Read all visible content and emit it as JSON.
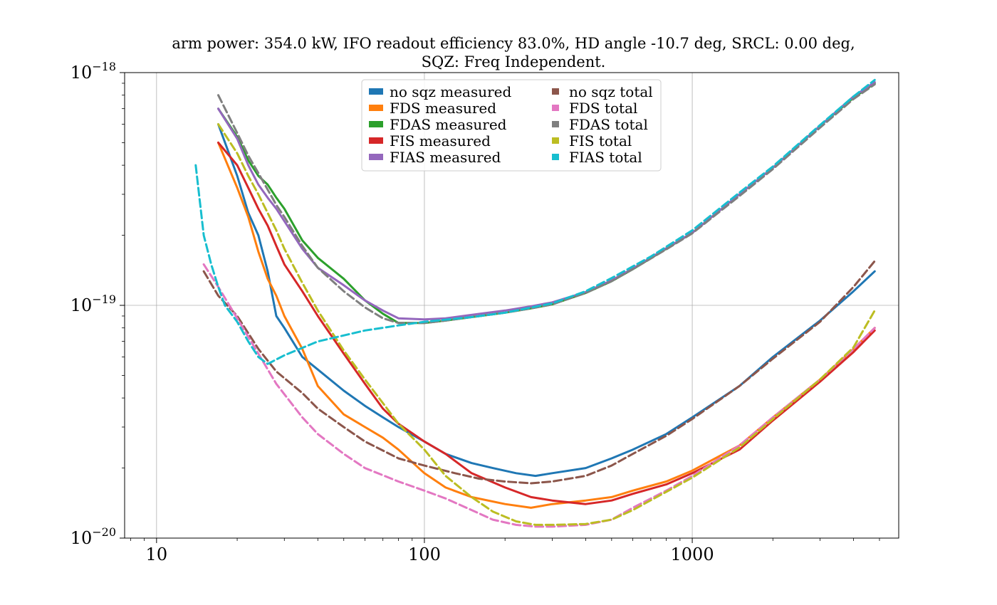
{
  "chart_data": {
    "type": "line",
    "title_line1": "arm power: 354.0 kW, IFO readout efficiency 83.0%, HD angle -10.7 deg, SRCL: 0.00 deg,",
    "title_line2": "SQZ: Freq Independent.",
    "xlabel": "",
    "ylabel": "",
    "x_scale": "log",
    "y_scale": "log",
    "xlim": [
      7.6,
      5900
    ],
    "ylim": [
      1e-20,
      1e-18
    ],
    "x_ticks": [
      10,
      100,
      1000
    ],
    "x_tick_labels": [
      "10",
      "100",
      "1000"
    ],
    "y_ticks": [
      1e-20,
      1e-19,
      1e-18
    ],
    "y_tick_labels": [
      {
        "base": "10",
        "exp": "−20"
      },
      {
        "base": "10",
        "exp": "−19"
      },
      {
        "base": "10",
        "exp": "−18"
      }
    ],
    "grid": true,
    "legend_position": "upper-center",
    "legend_columns": 2,
    "series": [
      {
        "name": "no sqz measured",
        "color": "#1f77b4",
        "style": "solid",
        "points": [
          [
            17,
            6e-19
          ],
          [
            20,
            3.6e-19
          ],
          [
            22,
            2.5e-19
          ],
          [
            24,
            2e-19
          ],
          [
            26,
            1.4e-19
          ],
          [
            28,
            9e-20
          ],
          [
            30,
            8e-20
          ],
          [
            35,
            6e-20
          ],
          [
            40,
            5.3e-20
          ],
          [
            50,
            4.3e-20
          ],
          [
            60,
            3.7e-20
          ],
          [
            70,
            3.3e-20
          ],
          [
            80,
            3e-20
          ],
          [
            100,
            2.6e-20
          ],
          [
            120,
            2.3e-20
          ],
          [
            150,
            2.1e-20
          ],
          [
            180,
            2e-20
          ],
          [
            220,
            1.9e-20
          ],
          [
            260,
            1.85e-20
          ],
          [
            300,
            1.9e-20
          ],
          [
            400,
            2e-20
          ],
          [
            500,
            2.2e-20
          ],
          [
            600,
            2.4e-20
          ],
          [
            800,
            2.8e-20
          ],
          [
            1000,
            3.3e-20
          ],
          [
            1500,
            4.5e-20
          ],
          [
            2000,
            6e-20
          ],
          [
            3000,
            8.6e-20
          ],
          [
            4000,
            1.15e-19
          ],
          [
            4800,
            1.4e-19
          ]
        ]
      },
      {
        "name": "FDS measured",
        "color": "#ff7f0e",
        "style": "solid",
        "points": [
          [
            17,
            5e-19
          ],
          [
            20,
            3.2e-19
          ],
          [
            22,
            2.4e-19
          ],
          [
            24,
            1.7e-19
          ],
          [
            26,
            1.3e-19
          ],
          [
            28,
            1.1e-19
          ],
          [
            30,
            9e-20
          ],
          [
            35,
            6.5e-20
          ],
          [
            40,
            4.5e-20
          ],
          [
            50,
            3.4e-20
          ],
          [
            60,
            3e-20
          ],
          [
            70,
            2.7e-20
          ],
          [
            80,
            2.4e-20
          ],
          [
            100,
            1.9e-20
          ],
          [
            120,
            1.65e-20
          ],
          [
            150,
            1.5e-20
          ],
          [
            200,
            1.4e-20
          ],
          [
            250,
            1.35e-20
          ],
          [
            300,
            1.4e-20
          ],
          [
            400,
            1.45e-20
          ],
          [
            500,
            1.5e-20
          ],
          [
            600,
            1.6e-20
          ],
          [
            800,
            1.75e-20
          ],
          [
            1000,
            1.95e-20
          ],
          [
            1500,
            2.5e-20
          ],
          [
            2000,
            3.3e-20
          ],
          [
            3000,
            4.8e-20
          ],
          [
            4000,
            6.5e-20
          ],
          [
            4800,
            8e-20
          ]
        ]
      },
      {
        "name": "FDAS measured",
        "color": "#2ca02c",
        "style": "solid",
        "points": [
          [
            17,
            7e-19
          ],
          [
            20,
            5.3e-19
          ],
          [
            22,
            4.2e-19
          ],
          [
            24,
            3.6e-19
          ],
          [
            26,
            3.3e-19
          ],
          [
            28,
            2.9e-19
          ],
          [
            30,
            2.6e-19
          ],
          [
            35,
            1.9e-19
          ],
          [
            40,
            1.6e-19
          ],
          [
            50,
            1.3e-19
          ],
          [
            60,
            1.05e-19
          ],
          [
            70,
            9.2e-20
          ],
          [
            80,
            8.4e-20
          ],
          [
            100,
            8.4e-20
          ],
          [
            120,
            8.6e-20
          ],
          [
            150,
            8.9e-20
          ],
          [
            200,
            9.3e-20
          ],
          [
            250,
            9.7e-20
          ],
          [
            300,
            1.01e-19
          ],
          [
            400,
            1.13e-19
          ],
          [
            500,
            1.27e-19
          ],
          [
            600,
            1.43e-19
          ],
          [
            800,
            1.75e-19
          ],
          [
            1000,
            2.05e-19
          ],
          [
            1500,
            3e-19
          ],
          [
            2000,
            3.9e-19
          ],
          [
            3000,
            5.9e-19
          ],
          [
            4000,
            7.8e-19
          ],
          [
            4800,
            9e-19
          ]
        ]
      },
      {
        "name": "FIS measured",
        "color": "#d62728",
        "style": "solid",
        "points": [
          [
            17,
            5e-19
          ],
          [
            20,
            4e-19
          ],
          [
            22,
            3.2e-19
          ],
          [
            24,
            2.6e-19
          ],
          [
            26,
            2.2e-19
          ],
          [
            28,
            1.8e-19
          ],
          [
            30,
            1.5e-19
          ],
          [
            35,
            1.15e-19
          ],
          [
            40,
            9e-20
          ],
          [
            50,
            6.2e-20
          ],
          [
            60,
            4.6e-20
          ],
          [
            70,
            3.6e-20
          ],
          [
            80,
            3.1e-20
          ],
          [
            100,
            2.6e-20
          ],
          [
            120,
            2.3e-20
          ],
          [
            150,
            1.9e-20
          ],
          [
            200,
            1.65e-20
          ],
          [
            250,
            1.5e-20
          ],
          [
            300,
            1.45e-20
          ],
          [
            400,
            1.4e-20
          ],
          [
            500,
            1.45e-20
          ],
          [
            600,
            1.55e-20
          ],
          [
            800,
            1.7e-20
          ],
          [
            1000,
            1.9e-20
          ],
          [
            1500,
            2.4e-20
          ],
          [
            2000,
            3.2e-20
          ],
          [
            3000,
            4.7e-20
          ],
          [
            4000,
            6.3e-20
          ],
          [
            4800,
            7.8e-20
          ]
        ]
      },
      {
        "name": "FIAS measured",
        "color": "#9467bd",
        "style": "solid",
        "points": [
          [
            17,
            7e-19
          ],
          [
            20,
            5.2e-19
          ],
          [
            22,
            4e-19
          ],
          [
            24,
            3.3e-19
          ],
          [
            26,
            2.9e-19
          ],
          [
            28,
            2.6e-19
          ],
          [
            30,
            2.3e-19
          ],
          [
            35,
            1.75e-19
          ],
          [
            40,
            1.45e-19
          ],
          [
            50,
            1.22e-19
          ],
          [
            60,
            1.05e-19
          ],
          [
            70,
            9.5e-20
          ],
          [
            80,
            8.8e-20
          ],
          [
            100,
            8.7e-20
          ],
          [
            120,
            8.8e-20
          ],
          [
            150,
            9.1e-20
          ],
          [
            200,
            9.5e-20
          ],
          [
            250,
            9.9e-20
          ],
          [
            300,
            1.03e-19
          ],
          [
            400,
            1.14e-19
          ],
          [
            500,
            1.28e-19
          ],
          [
            600,
            1.44e-19
          ],
          [
            800,
            1.76e-19
          ],
          [
            1000,
            2.05e-19
          ],
          [
            1500,
            3e-19
          ],
          [
            2000,
            3.9e-19
          ],
          [
            3000,
            5.9e-19
          ],
          [
            4000,
            7.9e-19
          ],
          [
            4800,
            9.1e-19
          ]
        ]
      },
      {
        "name": "no sqz total",
        "color": "#8c564b",
        "style": "dashed",
        "points": [
          [
            15,
            1.4e-19
          ],
          [
            17,
            1.1e-19
          ],
          [
            20,
            9e-20
          ],
          [
            24,
            6.5e-20
          ],
          [
            28,
            5.2e-20
          ],
          [
            35,
            4.2e-20
          ],
          [
            40,
            3.6e-20
          ],
          [
            50,
            3e-20
          ],
          [
            60,
            2.6e-20
          ],
          [
            80,
            2.2e-20
          ],
          [
            100,
            2.05e-20
          ],
          [
            130,
            1.9e-20
          ],
          [
            160,
            1.8e-20
          ],
          [
            200,
            1.75e-20
          ],
          [
            250,
            1.72e-20
          ],
          [
            300,
            1.75e-20
          ],
          [
            400,
            1.85e-20
          ],
          [
            500,
            2.05e-20
          ],
          [
            600,
            2.3e-20
          ],
          [
            800,
            2.75e-20
          ],
          [
            1000,
            3.25e-20
          ],
          [
            1500,
            4.5e-20
          ],
          [
            2000,
            5.9e-20
          ],
          [
            3000,
            8.5e-20
          ],
          [
            4000,
            1.2e-19
          ],
          [
            4800,
            1.55e-19
          ]
        ]
      },
      {
        "name": "FDS total",
        "color": "#e377c2",
        "style": "dashed",
        "points": [
          [
            15,
            1.5e-19
          ],
          [
            17,
            1.2e-19
          ],
          [
            20,
            8.8e-20
          ],
          [
            24,
            6.2e-20
          ],
          [
            28,
            4.6e-20
          ],
          [
            35,
            3.3e-20
          ],
          [
            40,
            2.8e-20
          ],
          [
            50,
            2.3e-20
          ],
          [
            60,
            2e-20
          ],
          [
            80,
            1.75e-20
          ],
          [
            100,
            1.6e-20
          ],
          [
            120,
            1.48e-20
          ],
          [
            150,
            1.32e-20
          ],
          [
            180,
            1.2e-20
          ],
          [
            220,
            1.14e-20
          ],
          [
            260,
            1.12e-20
          ],
          [
            300,
            1.12e-20
          ],
          [
            400,
            1.14e-20
          ],
          [
            500,
            1.2e-20
          ],
          [
            600,
            1.35e-20
          ],
          [
            800,
            1.6e-20
          ],
          [
            1000,
            1.85e-20
          ],
          [
            1500,
            2.5e-20
          ],
          [
            2000,
            3.3e-20
          ],
          [
            3000,
            4.8e-20
          ],
          [
            4000,
            6.5e-20
          ],
          [
            4800,
            8e-20
          ]
        ]
      },
      {
        "name": "FDAS total",
        "color": "#7f7f7f",
        "style": "dashed",
        "points": [
          [
            17,
            8e-19
          ],
          [
            20,
            5.5e-19
          ],
          [
            22,
            4.4e-19
          ],
          [
            24,
            3.7e-19
          ],
          [
            28,
            2.7e-19
          ],
          [
            30,
            2.4e-19
          ],
          [
            35,
            1.8e-19
          ],
          [
            40,
            1.45e-19
          ],
          [
            50,
            1.15e-19
          ],
          [
            60,
            9.8e-20
          ],
          [
            70,
            8.8e-20
          ],
          [
            80,
            8.4e-20
          ],
          [
            100,
            8.4e-20
          ],
          [
            120,
            8.6e-20
          ],
          [
            150,
            8.9e-20
          ],
          [
            200,
            9.3e-20
          ],
          [
            250,
            9.7e-20
          ],
          [
            300,
            1.01e-19
          ],
          [
            400,
            1.13e-19
          ],
          [
            500,
            1.27e-19
          ],
          [
            600,
            1.43e-19
          ],
          [
            800,
            1.74e-19
          ],
          [
            1000,
            2.04e-19
          ],
          [
            1500,
            2.95e-19
          ],
          [
            2000,
            3.85e-19
          ],
          [
            3000,
            5.8e-19
          ],
          [
            4000,
            7.7e-19
          ],
          [
            4800,
            8.9e-19
          ]
        ]
      },
      {
        "name": "FIS total",
        "color": "#bcbd22",
        "style": "dashed",
        "points": [
          [
            17,
            6e-19
          ],
          [
            20,
            4.5e-19
          ],
          [
            22,
            3.6e-19
          ],
          [
            24,
            3e-19
          ],
          [
            28,
            2.1e-19
          ],
          [
            30,
            1.75e-19
          ],
          [
            35,
            1.25e-19
          ],
          [
            40,
            9.5e-20
          ],
          [
            50,
            6.4e-20
          ],
          [
            60,
            4.8e-20
          ],
          [
            70,
            3.8e-20
          ],
          [
            80,
            3.1e-20
          ],
          [
            100,
            2.4e-20
          ],
          [
            120,
            1.85e-20
          ],
          [
            150,
            1.5e-20
          ],
          [
            180,
            1.3e-20
          ],
          [
            220,
            1.18e-20
          ],
          [
            260,
            1.14e-20
          ],
          [
            300,
            1.14e-20
          ],
          [
            400,
            1.15e-20
          ],
          [
            500,
            1.2e-20
          ],
          [
            600,
            1.32e-20
          ],
          [
            800,
            1.58e-20
          ],
          [
            1000,
            1.82e-20
          ],
          [
            1500,
            2.45e-20
          ],
          [
            2000,
            3.25e-20
          ],
          [
            3000,
            4.8e-20
          ],
          [
            4000,
            6.6e-20
          ],
          [
            4800,
            9.5e-20
          ]
        ]
      },
      {
        "name": "FIAS total",
        "color": "#17becf",
        "style": "dashed",
        "points": [
          [
            14,
            4e-19
          ],
          [
            15,
            2e-19
          ],
          [
            16,
            1.5e-19
          ],
          [
            17,
            1.2e-19
          ],
          [
            18,
            1e-19
          ],
          [
            20,
            8.5e-20
          ],
          [
            22,
            7e-20
          ],
          [
            24,
            6e-20
          ],
          [
            26,
            5.6e-20
          ],
          [
            30,
            6.1e-20
          ],
          [
            40,
            7e-20
          ],
          [
            60,
            7.8e-20
          ],
          [
            80,
            8.2e-20
          ],
          [
            100,
            8.5e-20
          ],
          [
            150,
            8.9e-20
          ],
          [
            200,
            9.3e-20
          ],
          [
            300,
            1.02e-19
          ],
          [
            400,
            1.15e-19
          ],
          [
            500,
            1.31e-19
          ],
          [
            700,
            1.62e-19
          ],
          [
            1000,
            2.1e-19
          ],
          [
            1500,
            3.05e-19
          ],
          [
            2000,
            3.95e-19
          ],
          [
            3000,
            5.95e-19
          ],
          [
            4000,
            7.9e-19
          ],
          [
            4800,
            9.3e-19
          ]
        ]
      }
    ]
  }
}
